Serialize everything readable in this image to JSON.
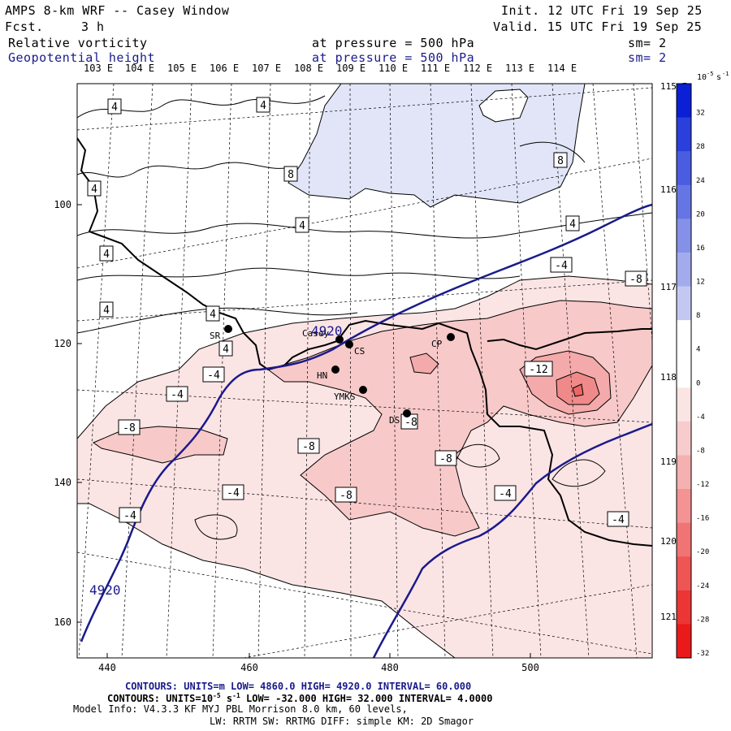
{
  "header": {
    "title": "AMPS 8-km WRF -- Casey Window",
    "fcst_label": "Fcst.",
    "fcst_value": "3 h",
    "init": "Init. 12 UTC Fri 19 Sep 25",
    "valid": "Valid. 15 UTC Fri 19 Sep 25",
    "field1_name": "Relative vorticity",
    "field1_level": "at pressure =  500 hPa",
    "field1_sm": "sm= 2",
    "field2_name": "Geopotential height",
    "field2_level": "at pressure =  500 hPa",
    "field2_sm": "sm= 2"
  },
  "longitude_labels_top": [
    "103 E",
    "104 E",
    "105 E",
    "106 E",
    "107 E",
    "108 E",
    "109 E",
    "110 E",
    "111 E",
    "112 E",
    "113 E",
    "114 E"
  ],
  "longitude_labels_right": [
    "115 E",
    "116 E",
    "117 E",
    "118 E",
    "119 E",
    "120 E",
    "121 E"
  ],
  "y_axis_labels": [
    "100",
    "120",
    "140",
    "160"
  ],
  "x_axis_labels": [
    "440",
    "460",
    "480",
    "500"
  ],
  "stations": [
    {
      "code": "SR"
    },
    {
      "code": "Casey"
    },
    {
      "code": "CS"
    },
    {
      "code": "HN"
    },
    {
      "code": "YMKS"
    },
    {
      "code": "DS"
    },
    {
      "code": "CP"
    }
  ],
  "height_contour_labels": [
    "4920",
    "4920"
  ],
  "vorticity_contour_labels": [
    "4",
    "4",
    "8",
    "4",
    "4",
    "4",
    "4",
    "8",
    "4",
    "-4",
    "-8",
    "4",
    "4",
    "-4",
    "-12",
    "-4",
    "-8",
    "-8",
    "-8",
    "-8",
    "-4",
    "-8",
    "-4",
    "-4",
    "-4"
  ],
  "colorbar": {
    "unit_base": "10",
    "unit_exp": "-5",
    "unit_s": "s",
    "unit_s_exp": "-1",
    "ticks": [
      "32",
      "28",
      "24",
      "20",
      "16",
      "12",
      "8",
      "4",
      "0",
      "-4",
      "-8",
      "-12",
      "-16",
      "-20",
      "-24",
      "-28",
      "-32"
    ],
    "colors": [
      "#0a1fd6",
      "#2a3fdc",
      "#4a5ce0",
      "#6675e4",
      "#8590e8",
      "#a3abed",
      "#c3c8f3",
      "#ffffff",
      "#ffffff",
      "#fbe4e4",
      "#f8cccc",
      "#f5b0b0",
      "#f39393",
      "#f07474",
      "#ee5555",
      "#ec3636",
      "#ea1a1a"
    ]
  },
  "footer": {
    "line1": "CONTOURS:  UNITS=m  LOW=  4860.0        HIGH=  4920.0         INTERVAL=   60.000",
    "line2_a": "CONTOURS:  UNITS=10",
    "line2_exp1": "-5",
    "line2_b": " s",
    "line2_exp2": "-1",
    "line2_c": "  LOW= -32.000        HIGH=  32.000        INTERVAL=   4.0000",
    "line3": "Model Info: V4.3.3   KF     MYJ PBL  Morrison           8.0 km,  60 levels,",
    "line4": "LW: RRTM SW: RRTMG   DIFF: simple KM: 2D Smagor"
  }
}
